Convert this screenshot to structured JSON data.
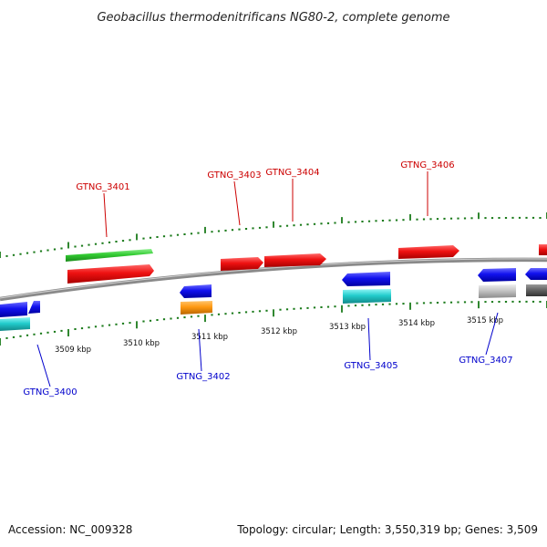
{
  "title": "Geobacillus thermodenitrificans NG80-2, complete genome",
  "footer": {
    "accession": "Accession: NC_009328",
    "summary": "Topology: circular; Length: 3,550,319 bp; Genes: 3,509"
  },
  "colors": {
    "forward_label": "#cc0000",
    "reverse_label": "#0000cc",
    "tick": "#1a7a1a",
    "backbone": "#888888"
  },
  "scale": {
    "labels": [
      "3509 kbp",
      "3510 kbp",
      "3511 kbp",
      "3512 kbp",
      "3513 kbp",
      "3514 kbp",
      "3515 kbp"
    ]
  },
  "genes": {
    "GTNG_3400": "GTNG_3400",
    "GTNG_3401": "GTNG_3401",
    "GTNG_3402": "GTNG_3402",
    "GTNG_3403": "GTNG_3403",
    "GTNG_3404": "GTNG_3404",
    "GTNG_3405": "GTNG_3405",
    "GTNG_3406": "GTNG_3406",
    "GTNG_3407": "GTNG_3407"
  }
}
